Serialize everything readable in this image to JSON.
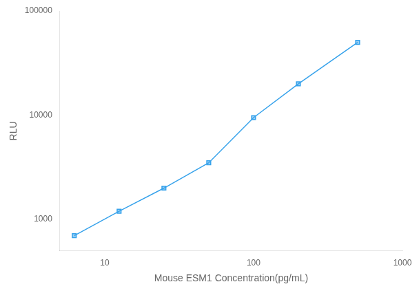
{
  "chart_data": {
    "type": "line",
    "x": [
      6.25,
      12.5,
      25,
      50,
      100,
      200,
      500
    ],
    "values": [
      700,
      1200,
      2000,
      3500,
      9500,
      20000,
      50000
    ],
    "xlabel": "Mouse ESM1 Concentration(pg/mL)",
    "ylabel": "RLU",
    "xlim": [
      5,
      1000
    ],
    "ylim": [
      500,
      100000
    ],
    "xticks": [
      10,
      100,
      1000
    ],
    "yticks": [
      1000,
      10000,
      100000
    ],
    "log": true,
    "marker": "square",
    "grid": false
  }
}
